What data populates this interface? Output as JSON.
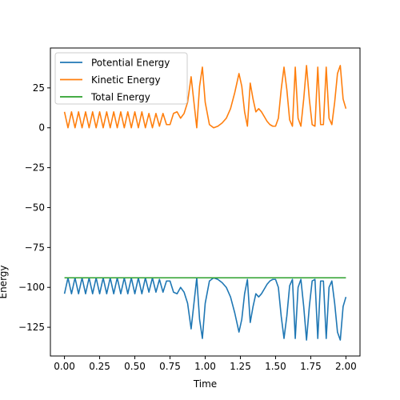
{
  "chart_data": {
    "type": "line",
    "title": "",
    "xlabel": "Time",
    "ylabel": "Energy",
    "xlim": [
      -0.1,
      2.1
    ],
    "ylim": [
      -143,
      50
    ],
    "xticks": [
      0.0,
      0.25,
      0.5,
      0.75,
      1.0,
      1.25,
      1.5,
      1.75,
      2.0
    ],
    "xtick_labels": [
      "0.00",
      "0.25",
      "0.50",
      "0.75",
      "1.00",
      "1.25",
      "1.50",
      "1.75",
      "2.00"
    ],
    "yticks": [
      25,
      0,
      -25,
      -50,
      -75,
      -100,
      -125
    ],
    "ytick_labels": [
      "25",
      "0",
      "−25",
      "−50",
      "−75",
      "−100",
      "−125"
    ],
    "grid": false,
    "legend_position": "top-left",
    "series": [
      {
        "name": "Potential Energy",
        "color": "#1f77b4",
        "x": [
          0.0,
          0.025,
          0.05,
          0.075,
          0.1,
          0.125,
          0.15,
          0.175,
          0.2,
          0.225,
          0.25,
          0.275,
          0.3,
          0.325,
          0.35,
          0.375,
          0.4,
          0.425,
          0.45,
          0.475,
          0.5,
          0.525,
          0.55,
          0.575,
          0.6,
          0.625,
          0.65,
          0.675,
          0.7,
          0.725,
          0.75,
          0.775,
          0.8,
          0.825,
          0.85,
          0.875,
          0.9,
          0.92,
          0.94,
          0.96,
          0.98,
          1.0,
          1.03,
          1.06,
          1.09,
          1.12,
          1.15,
          1.18,
          1.21,
          1.24,
          1.26,
          1.28,
          1.3,
          1.32,
          1.34,
          1.36,
          1.38,
          1.4,
          1.42,
          1.44,
          1.46,
          1.48,
          1.5,
          1.52,
          1.54,
          1.56,
          1.58,
          1.6,
          1.62,
          1.64,
          1.66,
          1.68,
          1.7,
          1.72,
          1.74,
          1.76,
          1.78,
          1.8,
          1.82,
          1.84,
          1.86,
          1.88,
          1.9,
          1.92,
          1.94,
          1.96,
          1.98,
          2.0
        ],
        "y": [
          -104,
          -94,
          -104,
          -94,
          -104,
          -94,
          -104,
          -94,
          -104,
          -94,
          -104,
          -94,
          -104,
          -94,
          -104,
          -94,
          -104,
          -94,
          -104,
          -94,
          -104,
          -94,
          -104,
          -94,
          -103,
          -94,
          -103,
          -95,
          -103,
          -96,
          -96,
          -103,
          -104,
          -100,
          -103,
          -110,
          -126,
          -110,
          -94,
          -120,
          -132,
          -110,
          -96,
          -94,
          -95,
          -97,
          -100,
          -106,
          -116,
          -128,
          -120,
          -104,
          -95,
          -122,
          -112,
          -104,
          -106,
          -104,
          -101,
          -98,
          -96,
          -95,
          -95,
          -100,
          -118,
          -132,
          -118,
          -99,
          -95,
          -132,
          -100,
          -95,
          -112,
          -133,
          -112,
          -96,
          -95,
          -132,
          -96,
          -96,
          -132,
          -100,
          -96,
          -110,
          -128,
          -133,
          -112,
          -106
        ]
      },
      {
        "name": "Kinetic Energy",
        "color": "#ff7f0e",
        "x": [
          0.0,
          0.025,
          0.05,
          0.075,
          0.1,
          0.125,
          0.15,
          0.175,
          0.2,
          0.225,
          0.25,
          0.275,
          0.3,
          0.325,
          0.35,
          0.375,
          0.4,
          0.425,
          0.45,
          0.475,
          0.5,
          0.525,
          0.55,
          0.575,
          0.6,
          0.625,
          0.65,
          0.675,
          0.7,
          0.725,
          0.75,
          0.775,
          0.8,
          0.825,
          0.85,
          0.875,
          0.9,
          0.92,
          0.94,
          0.96,
          0.98,
          1.0,
          1.03,
          1.06,
          1.09,
          1.12,
          1.15,
          1.18,
          1.21,
          1.24,
          1.26,
          1.28,
          1.3,
          1.32,
          1.34,
          1.36,
          1.38,
          1.4,
          1.42,
          1.44,
          1.46,
          1.48,
          1.5,
          1.52,
          1.54,
          1.56,
          1.58,
          1.6,
          1.62,
          1.64,
          1.66,
          1.68,
          1.7,
          1.72,
          1.74,
          1.76,
          1.78,
          1.8,
          1.82,
          1.84,
          1.86,
          1.88,
          1.9,
          1.92,
          1.94,
          1.96,
          1.98,
          2.0
        ],
        "y": [
          10,
          0,
          10,
          0,
          10,
          0,
          10,
          0,
          10,
          0,
          10,
          0,
          10,
          0,
          10,
          0,
          10,
          0,
          10,
          0,
          10,
          0,
          10,
          0,
          9,
          0,
          9,
          1,
          9,
          2,
          2,
          9,
          10,
          6,
          9,
          16,
          32,
          16,
          0,
          26,
          38,
          16,
          2,
          0,
          1,
          3,
          6,
          12,
          22,
          34,
          26,
          10,
          1,
          28,
          18,
          10,
          12,
          10,
          7,
          4,
          2,
          1,
          1,
          6,
          24,
          38,
          24,
          5,
          1,
          38,
          6,
          1,
          18,
          39,
          18,
          2,
          1,
          38,
          2,
          2,
          38,
          6,
          2,
          16,
          34,
          39,
          18,
          12
        ]
      },
      {
        "name": "Total Energy",
        "color": "#2ca02c",
        "x": [
          0.0,
          0.5,
          1.0,
          1.5,
          2.0
        ],
        "y": [
          -94,
          -94,
          -94,
          -94,
          -94
        ]
      }
    ]
  }
}
